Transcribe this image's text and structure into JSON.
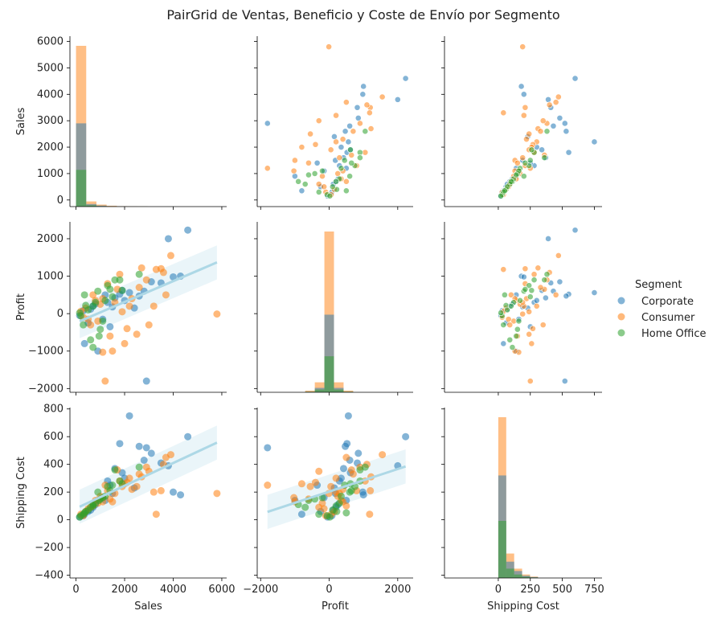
{
  "chart_data": {
    "type": "scatter",
    "title": "PairGrid de Ventas, Beneficio y Coste de Envío por Segmento",
    "variables": [
      "Sales",
      "Profit",
      "Shipping Cost"
    ],
    "ranges": {
      "Sales": [
        -250,
        6200
      ],
      "Profit": [
        -2100,
        2450
      ],
      "Shipping Cost": [
        -420,
        810
      ]
    },
    "tick_values": {
      "Sales_x": [
        0,
        2000,
        4000,
        6000
      ],
      "Sales_y": [
        0,
        1000,
        2000,
        3000,
        4000,
        5000,
        6000
      ],
      "Profit_x": [
        -2000,
        0,
        2000
      ],
      "Profit_y": [
        -2000,
        -1000,
        0,
        1000,
        2000
      ],
      "Shipping_x": [
        0,
        250,
        500,
        750
      ],
      "Shipping_y": [
        -400,
        -200,
        0,
        200,
        400,
        600,
        800
      ]
    },
    "tick_labels": {
      "Sales_x": [
        "0",
        "2000",
        "4000",
        "6000"
      ],
      "Sales_y": [
        "0",
        "1000",
        "2000",
        "3000",
        "4000",
        "5000",
        "6000"
      ],
      "Profit_x": [
        "−2000",
        "0",
        "2000"
      ],
      "Profit_y": [
        "−2000",
        "−1000",
        "0",
        "1000",
        "2000"
      ],
      "Shipping_x": [
        "0",
        "250",
        "500",
        "750"
      ],
      "Shipping_y": [
        "−400",
        "−200",
        "0",
        "200",
        "400",
        "600",
        "800"
      ]
    },
    "legend": {
      "title": "Segment",
      "placement": "right",
      "entries": [
        {
          "name": "Corporate",
          "color": "#1f77b4"
        },
        {
          "name": "Consumer",
          "color": "#ff7f0e"
        },
        {
          "name": "Home Office",
          "color": "#2ca02c"
        }
      ]
    },
    "regression_color": "#add8e6",
    "series": [
      {
        "name": "Corporate",
        "color": "#1f77b4",
        "points": [
          [
            4600,
            2230,
            600
          ],
          [
            3800,
            2000,
            390
          ],
          [
            4300,
            1000,
            180
          ],
          [
            2200,
            560,
            750
          ],
          [
            1800,
            520,
            550
          ],
          [
            3500,
            820,
            410
          ],
          [
            4000,
            980,
            200
          ],
          [
            2600,
            470,
            530
          ],
          [
            2900,
            -1800,
            520
          ],
          [
            1300,
            300,
            280
          ],
          [
            1600,
            420,
            370
          ],
          [
            900,
            -1000,
            140
          ],
          [
            700,
            200,
            90
          ],
          [
            1100,
            -150,
            160
          ],
          [
            2000,
            350,
            300
          ],
          [
            3100,
            850,
            480
          ],
          [
            2400,
            150,
            230
          ],
          [
            1900,
            620,
            340
          ],
          [
            1400,
            -350,
            250
          ],
          [
            500,
            -250,
            60
          ],
          [
            300,
            80,
            30
          ],
          [
            800,
            260,
            110
          ],
          [
            1500,
            180,
            190
          ],
          [
            2800,
            600,
            430
          ],
          [
            1200,
            500,
            140
          ],
          [
            350,
            -800,
            40
          ],
          [
            600,
            120,
            70
          ],
          [
            150,
            -50,
            20
          ]
        ]
      },
      {
        "name": "Consumer",
        "color": "#ff7f0e",
        "points": [
          [
            5800,
            -10,
            190
          ],
          [
            3900,
            1550,
            470
          ],
          [
            3500,
            1200,
            210
          ],
          [
            3300,
            1180,
            40
          ],
          [
            3600,
            1100,
            400
          ],
          [
            2700,
            1220,
            310
          ],
          [
            2900,
            900,
            380
          ],
          [
            1200,
            -1800,
            250
          ],
          [
            1100,
            -1030,
            160
          ],
          [
            1500,
            -1000,
            130
          ],
          [
            2200,
            200,
            300
          ],
          [
            2500,
            -550,
            240
          ],
          [
            1700,
            650,
            360
          ],
          [
            1300,
            800,
            210
          ],
          [
            900,
            -200,
            120
          ],
          [
            800,
            350,
            140
          ],
          [
            2100,
            -400,
            270
          ],
          [
            3200,
            200,
            200
          ],
          [
            600,
            -300,
            90
          ],
          [
            400,
            150,
            60
          ],
          [
            1000,
            250,
            170
          ],
          [
            1800,
            1050,
            280
          ],
          [
            2600,
            700,
            330
          ],
          [
            3000,
            -300,
            350
          ],
          [
            1400,
            -600,
            150
          ],
          [
            700,
            500,
            100
          ],
          [
            200,
            60,
            40
          ],
          [
            500,
            -150,
            80
          ],
          [
            2300,
            400,
            220
          ],
          [
            1600,
            300,
            190
          ],
          [
            3700,
            500,
            450
          ],
          [
            2000,
            -800,
            260
          ],
          [
            1900,
            50,
            240
          ],
          [
            300,
            -100,
            30
          ],
          [
            1100,
            400,
            130
          ]
        ]
      },
      {
        "name": "Home Office",
        "color": "#2ca02c",
        "points": [
          [
            1800,
            900,
            280
          ],
          [
            1300,
            750,
            240
          ],
          [
            900,
            600,
            200
          ],
          [
            700,
            -900,
            110
          ],
          [
            1000,
            -420,
            150
          ],
          [
            600,
            -700,
            90
          ],
          [
            1200,
            350,
            170
          ],
          [
            1500,
            450,
            250
          ],
          [
            400,
            220,
            60
          ],
          [
            200,
            -60,
            30
          ],
          [
            800,
            300,
            120
          ],
          [
            1100,
            -200,
            160
          ],
          [
            500,
            100,
            70
          ],
          [
            1600,
            900,
            360
          ],
          [
            300,
            -300,
            40
          ],
          [
            1400,
            650,
            210
          ],
          [
            700,
            200,
            100
          ],
          [
            2600,
            1050,
            380
          ],
          [
            1900,
            620,
            260
          ],
          [
            350,
            500,
            50
          ],
          [
            950,
            -600,
            140
          ],
          [
            150,
            20,
            20
          ]
        ]
      }
    ],
    "histograms": {
      "Sales": {
        "bin_width": 420,
        "bin_starts": [
          0,
          420,
          840,
          1260,
          1680,
          2100,
          2520
        ],
        "counts": {
          "Consumer": [
            5600,
            180,
            70,
            30,
            15,
            8,
            5
          ],
          "Corporate": [
            2900,
            90,
            35,
            15,
            8,
            4,
            2
          ],
          "Home Office": [
            1280,
            45,
            15,
            8,
            3,
            2,
            1
          ]
        }
      },
      "Profit": {
        "bin_width": 280,
        "bin_starts": [
          -700,
          -420,
          -140,
          140,
          420
        ],
        "counts": {
          "Consumer": [
            3,
            18,
            290,
            18,
            3
          ],
          "Corporate": [
            1,
            8,
            140,
            8,
            1
          ],
          "Home Office": [
            1,
            5,
            65,
            5,
            1
          ]
        }
      },
      "Shipping Cost": {
        "bin_width": 62,
        "bin_starts": [
          0,
          62,
          124,
          186,
          248
        ],
        "counts": {
          "Consumer": [
            690,
            105,
            40,
            15,
            6
          ],
          "Corporate": [
            440,
            70,
            30,
            10,
            4
          ],
          "Home Office": [
            245,
            40,
            15,
            5,
            2
          ]
        }
      }
    }
  }
}
